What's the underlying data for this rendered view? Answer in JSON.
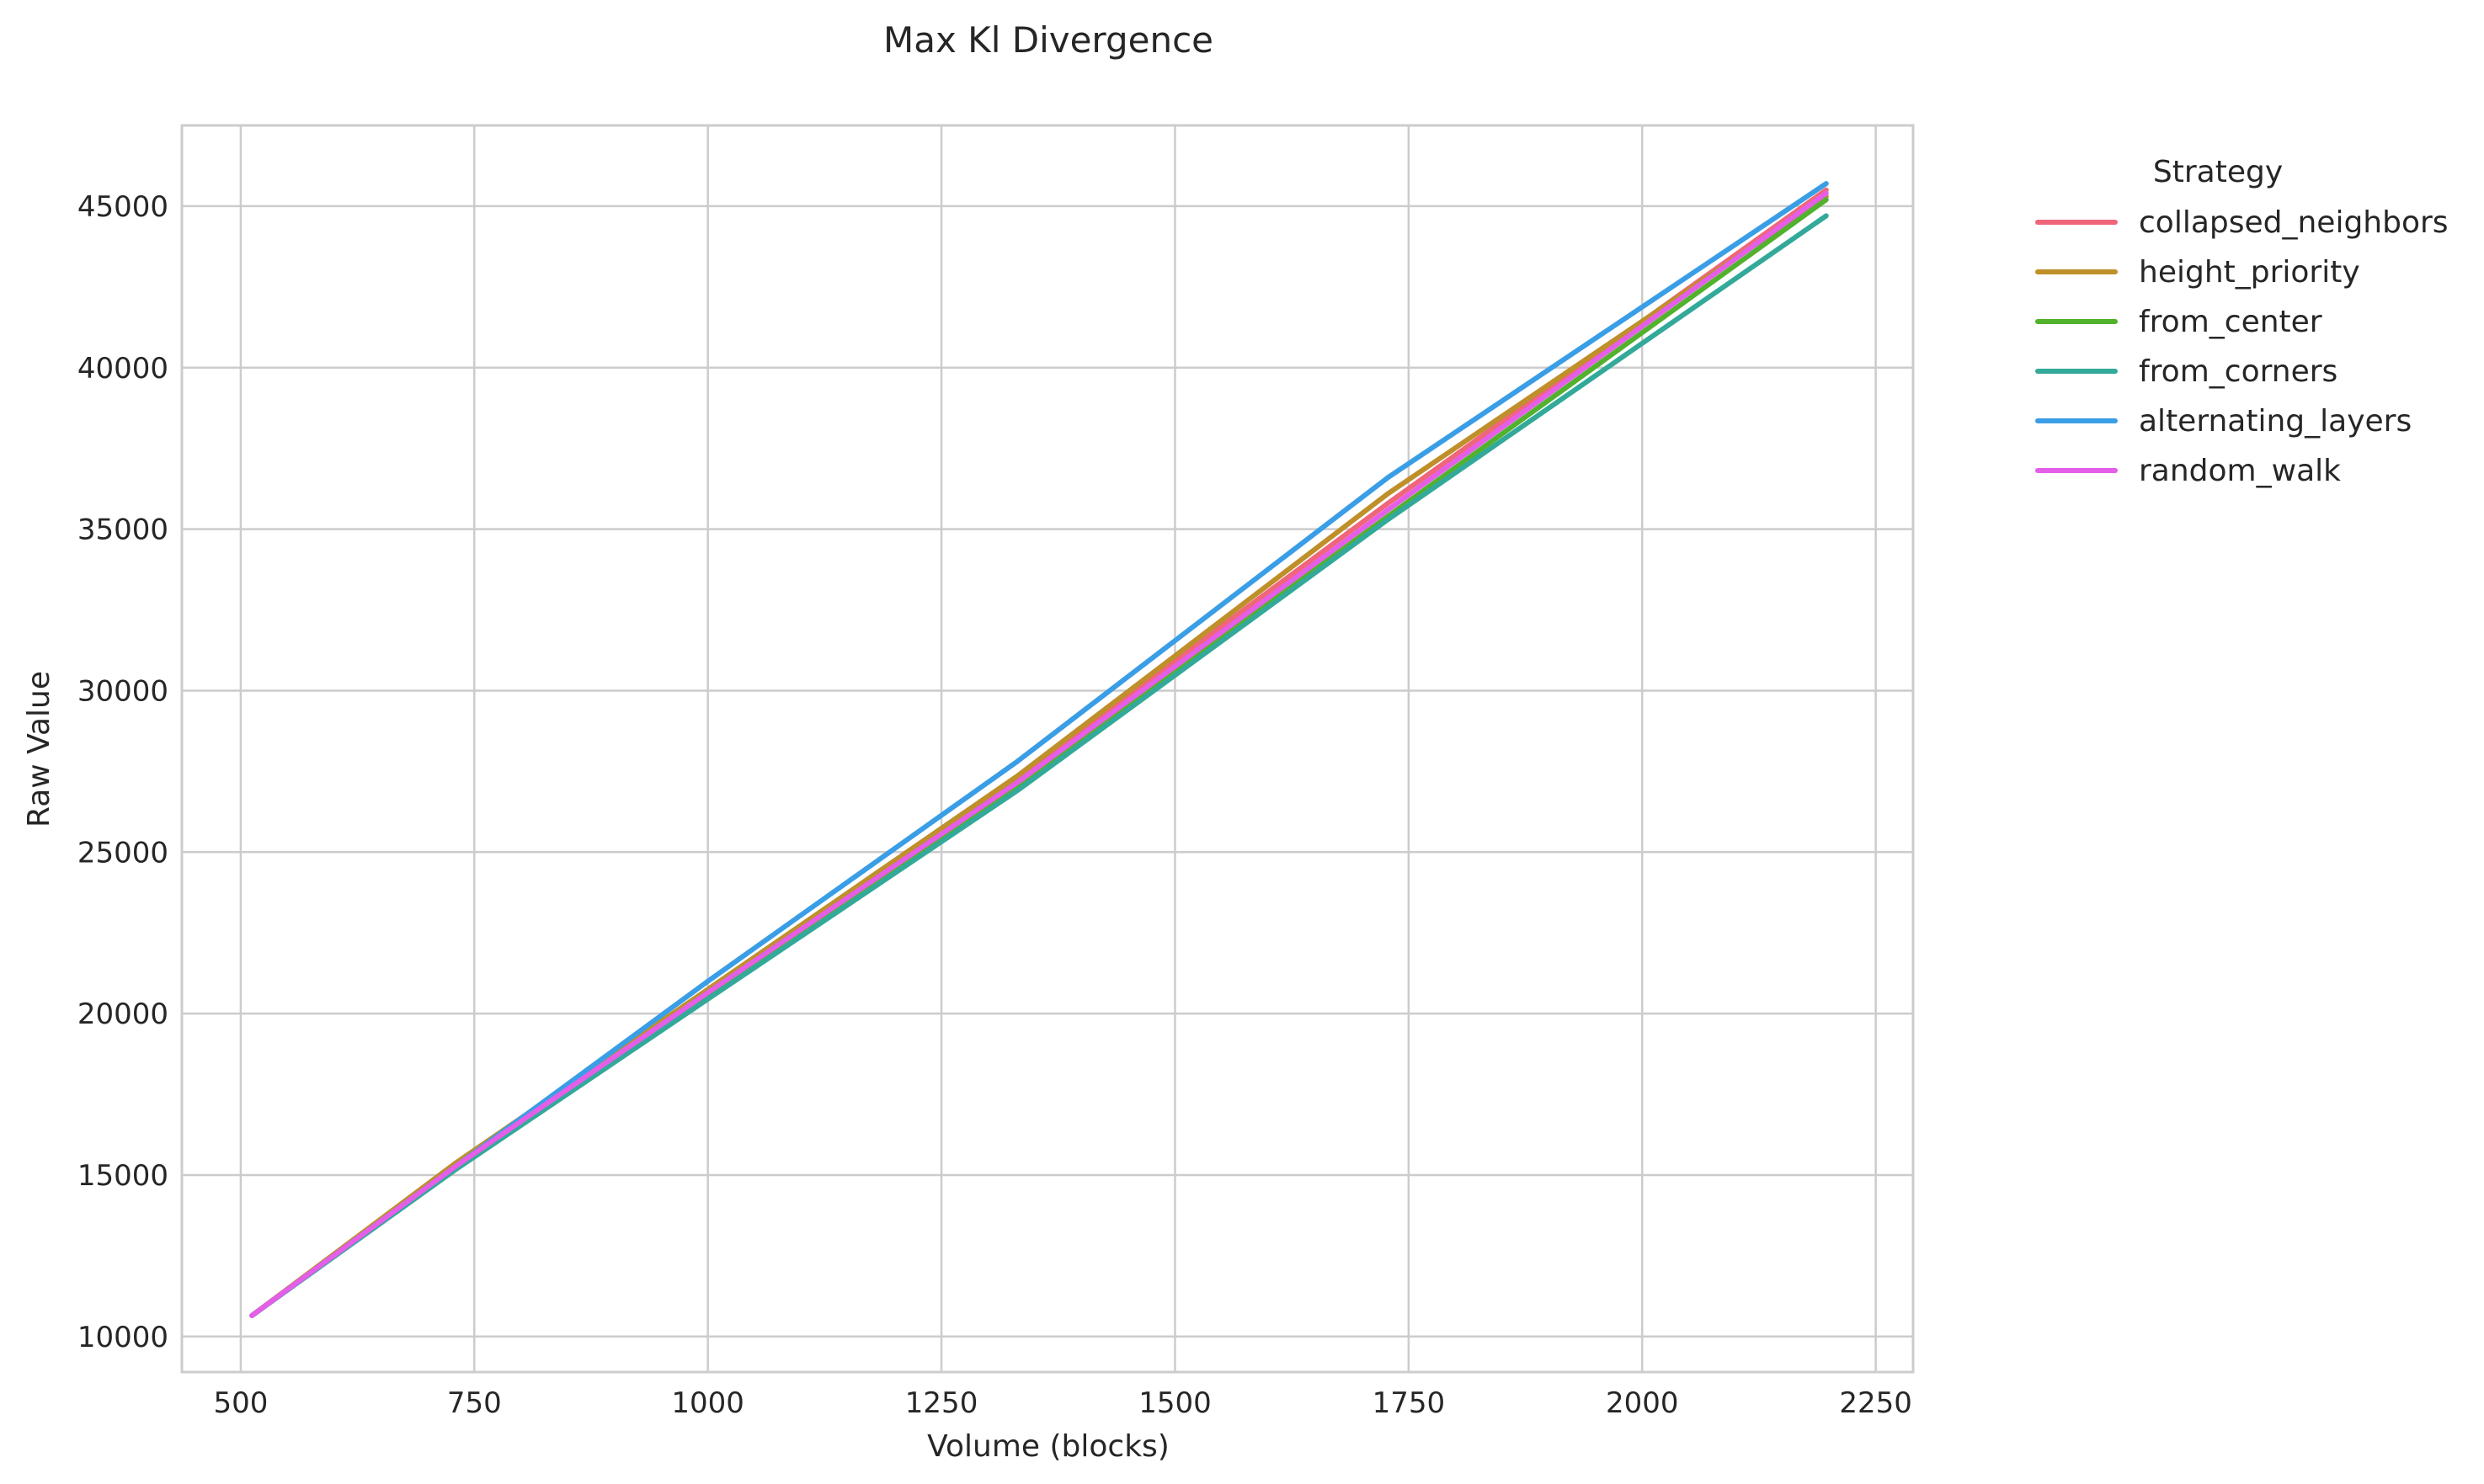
{
  "chart_data": {
    "type": "line",
    "title": "Max Kl Divergence",
    "xlabel": "Volume (blocks)",
    "ylabel": "Raw Value",
    "xlim": [
      437,
      2290
    ],
    "ylim": [
      8900,
      47500
    ],
    "xticks": [
      500,
      750,
      1000,
      1250,
      1500,
      1750,
      2000,
      2250
    ],
    "yticks": [
      10000,
      15000,
      20000,
      25000,
      30000,
      35000,
      40000,
      45000
    ],
    "grid": true,
    "legend": {
      "title": "Strategy",
      "placement": "outside-right"
    },
    "series": [
      {
        "name": "collapsed_neighbors",
        "color": "#f0657a",
        "x": [
          512,
          729,
          1000,
          1331,
          1728,
          2197
        ],
        "y": [
          10650,
          15300,
          20700,
          27300,
          35800,
          45500
        ]
      },
      {
        "name": "height_priority",
        "color": "#bf8f2a",
        "x": [
          512,
          729,
          1000,
          1331,
          1728,
          2197
        ],
        "y": [
          10650,
          15350,
          20750,
          27350,
          36100,
          45300
        ]
      },
      {
        "name": "from_center",
        "color": "#52b12d",
        "x": [
          512,
          729,
          1000,
          1331,
          1728,
          2197
        ],
        "y": [
          10650,
          15200,
          20500,
          27000,
          35400,
          45200
        ]
      },
      {
        "name": "from_corners",
        "color": "#33a99a",
        "x": [
          512,
          729,
          1000,
          1331,
          1728,
          2197
        ],
        "y": [
          10650,
          15150,
          20450,
          26900,
          35300,
          44700
        ]
      },
      {
        "name": "alternating_layers",
        "color": "#3a9ee6",
        "x": [
          512,
          729,
          1000,
          1331,
          1728,
          2197
        ],
        "y": [
          10650,
          15250,
          21000,
          27800,
          36600,
          45700
        ]
      },
      {
        "name": "random_walk",
        "color": "#e45ee8",
        "x": [
          512,
          729,
          1000,
          1331,
          1728,
          2197
        ],
        "y": [
          10650,
          15250,
          20650,
          27150,
          35600,
          45400
        ]
      }
    ]
  }
}
